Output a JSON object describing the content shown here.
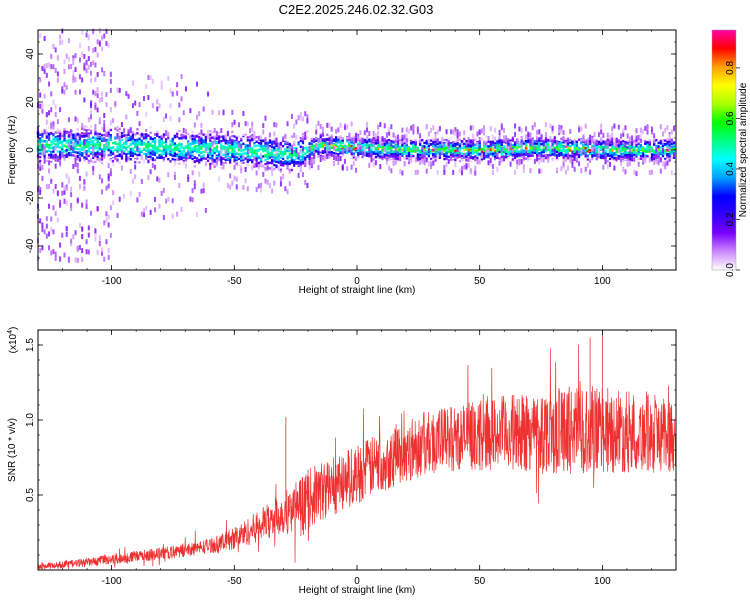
{
  "title": "C2E2.2025.246.02.32.G03",
  "chart_data": [
    {
      "type": "heatmap",
      "xlabel": "Height of straight line (km)",
      "ylabel": "Frequency (Hz)",
      "xlim": [
        -130,
        130
      ],
      "ylim": [
        -50,
        50
      ],
      "x_ticks": [
        -100,
        -50,
        0,
        50,
        100
      ],
      "y_ticks": [
        -40,
        -20,
        0,
        20,
        40
      ],
      "grid": false,
      "colorbar": {
        "label": "Normalized spectral amplitude",
        "range": [
          0,
          0.95
        ],
        "ticks": [
          "0.0",
          "0.2",
          "0.4",
          "0.6",
          "0.8"
        ],
        "colors": [
          "#ffffff",
          "#cc88ff",
          "#7a00ff",
          "#3300ff",
          "#0000ff",
          "#00a0ff",
          "#00ffff",
          "#00ff80",
          "#00ff00",
          "#aaff00",
          "#ffff00",
          "#ffa000",
          "#ff0000",
          "#ff00aa"
        ]
      },
      "ridge": {
        "description": "spectral power concentrated near 0 Hz across all heights",
        "center_hz": [
          {
            "x": -125,
            "y": 2
          },
          {
            "x": -100,
            "y": 2
          },
          {
            "x": -75,
            "y": 1
          },
          {
            "x": -50,
            "y": 0
          },
          {
            "x": -25,
            "y": -2
          },
          {
            "x": -15,
            "y": 2
          },
          {
            "x": 0,
            "y": 1
          },
          {
            "x": 25,
            "y": 0
          },
          {
            "x": 50,
            "y": 0
          },
          {
            "x": 75,
            "y": 1
          },
          {
            "x": 100,
            "y": 0
          },
          {
            "x": 130,
            "y": 0
          }
        ],
        "peak_amplitude_range": [
          -15,
          70
        ]
      }
    },
    {
      "type": "line",
      "xlabel": "Height of straight line (km)",
      "ylabel": "SNR (10 * v/v)",
      "y_multiplier": "(x10",
      "y_multiplier_exp": "4",
      "y_multiplier_close": ")",
      "xlim": [
        -130,
        130
      ],
      "ylim": [
        0,
        1.6
      ],
      "x_ticks": [
        -100,
        -50,
        0,
        50,
        100
      ],
      "y_ticks": [
        "0.5",
        "1.0",
        "1.5"
      ],
      "y_tick_values": [
        0.5,
        1.0,
        1.5
      ],
      "color": "#ee3030",
      "series": [
        {
          "values": [
            {
              "x": -130,
              "y": 0.02
            },
            {
              "x": -110,
              "y": 0.05
            },
            {
              "x": -90,
              "y": 0.09
            },
            {
              "x": -70,
              "y": 0.13
            },
            {
              "x": -55,
              "y": 0.18
            },
            {
              "x": -45,
              "y": 0.25
            },
            {
              "x": -35,
              "y": 0.34
            },
            {
              "x": -25,
              "y": 0.42
            },
            {
              "x": -15,
              "y": 0.52
            },
            {
              "x": -5,
              "y": 0.6
            },
            {
              "x": 5,
              "y": 0.68
            },
            {
              "x": 15,
              "y": 0.76
            },
            {
              "x": 25,
              "y": 0.83
            },
            {
              "x": 35,
              "y": 0.87
            },
            {
              "x": 50,
              "y": 0.9
            },
            {
              "x": 65,
              "y": 0.92
            },
            {
              "x": 80,
              "y": 0.93
            },
            {
              "x": 95,
              "y": 0.94
            },
            {
              "x": 110,
              "y": 0.92
            },
            {
              "x": 130,
              "y": 0.9
            }
          ],
          "noise_spread": [
            {
              "x": -130,
              "y": 0.02
            },
            {
              "x": -60,
              "y": 0.05
            },
            {
              "x": -35,
              "y": 0.12
            },
            {
              "x": -20,
              "y": 0.2
            },
            {
              "x": 0,
              "y": 0.2
            },
            {
              "x": 40,
              "y": 0.22
            },
            {
              "x": 90,
              "y": 0.3
            },
            {
              "x": 130,
              "y": 0.25
            }
          ]
        }
      ],
      "annotations": [
        {
          "x": -29,
          "y": 1.02
        },
        {
          "x": 100,
          "y": 1.58
        },
        {
          "x": 95,
          "y": 1.55
        }
      ]
    }
  ]
}
